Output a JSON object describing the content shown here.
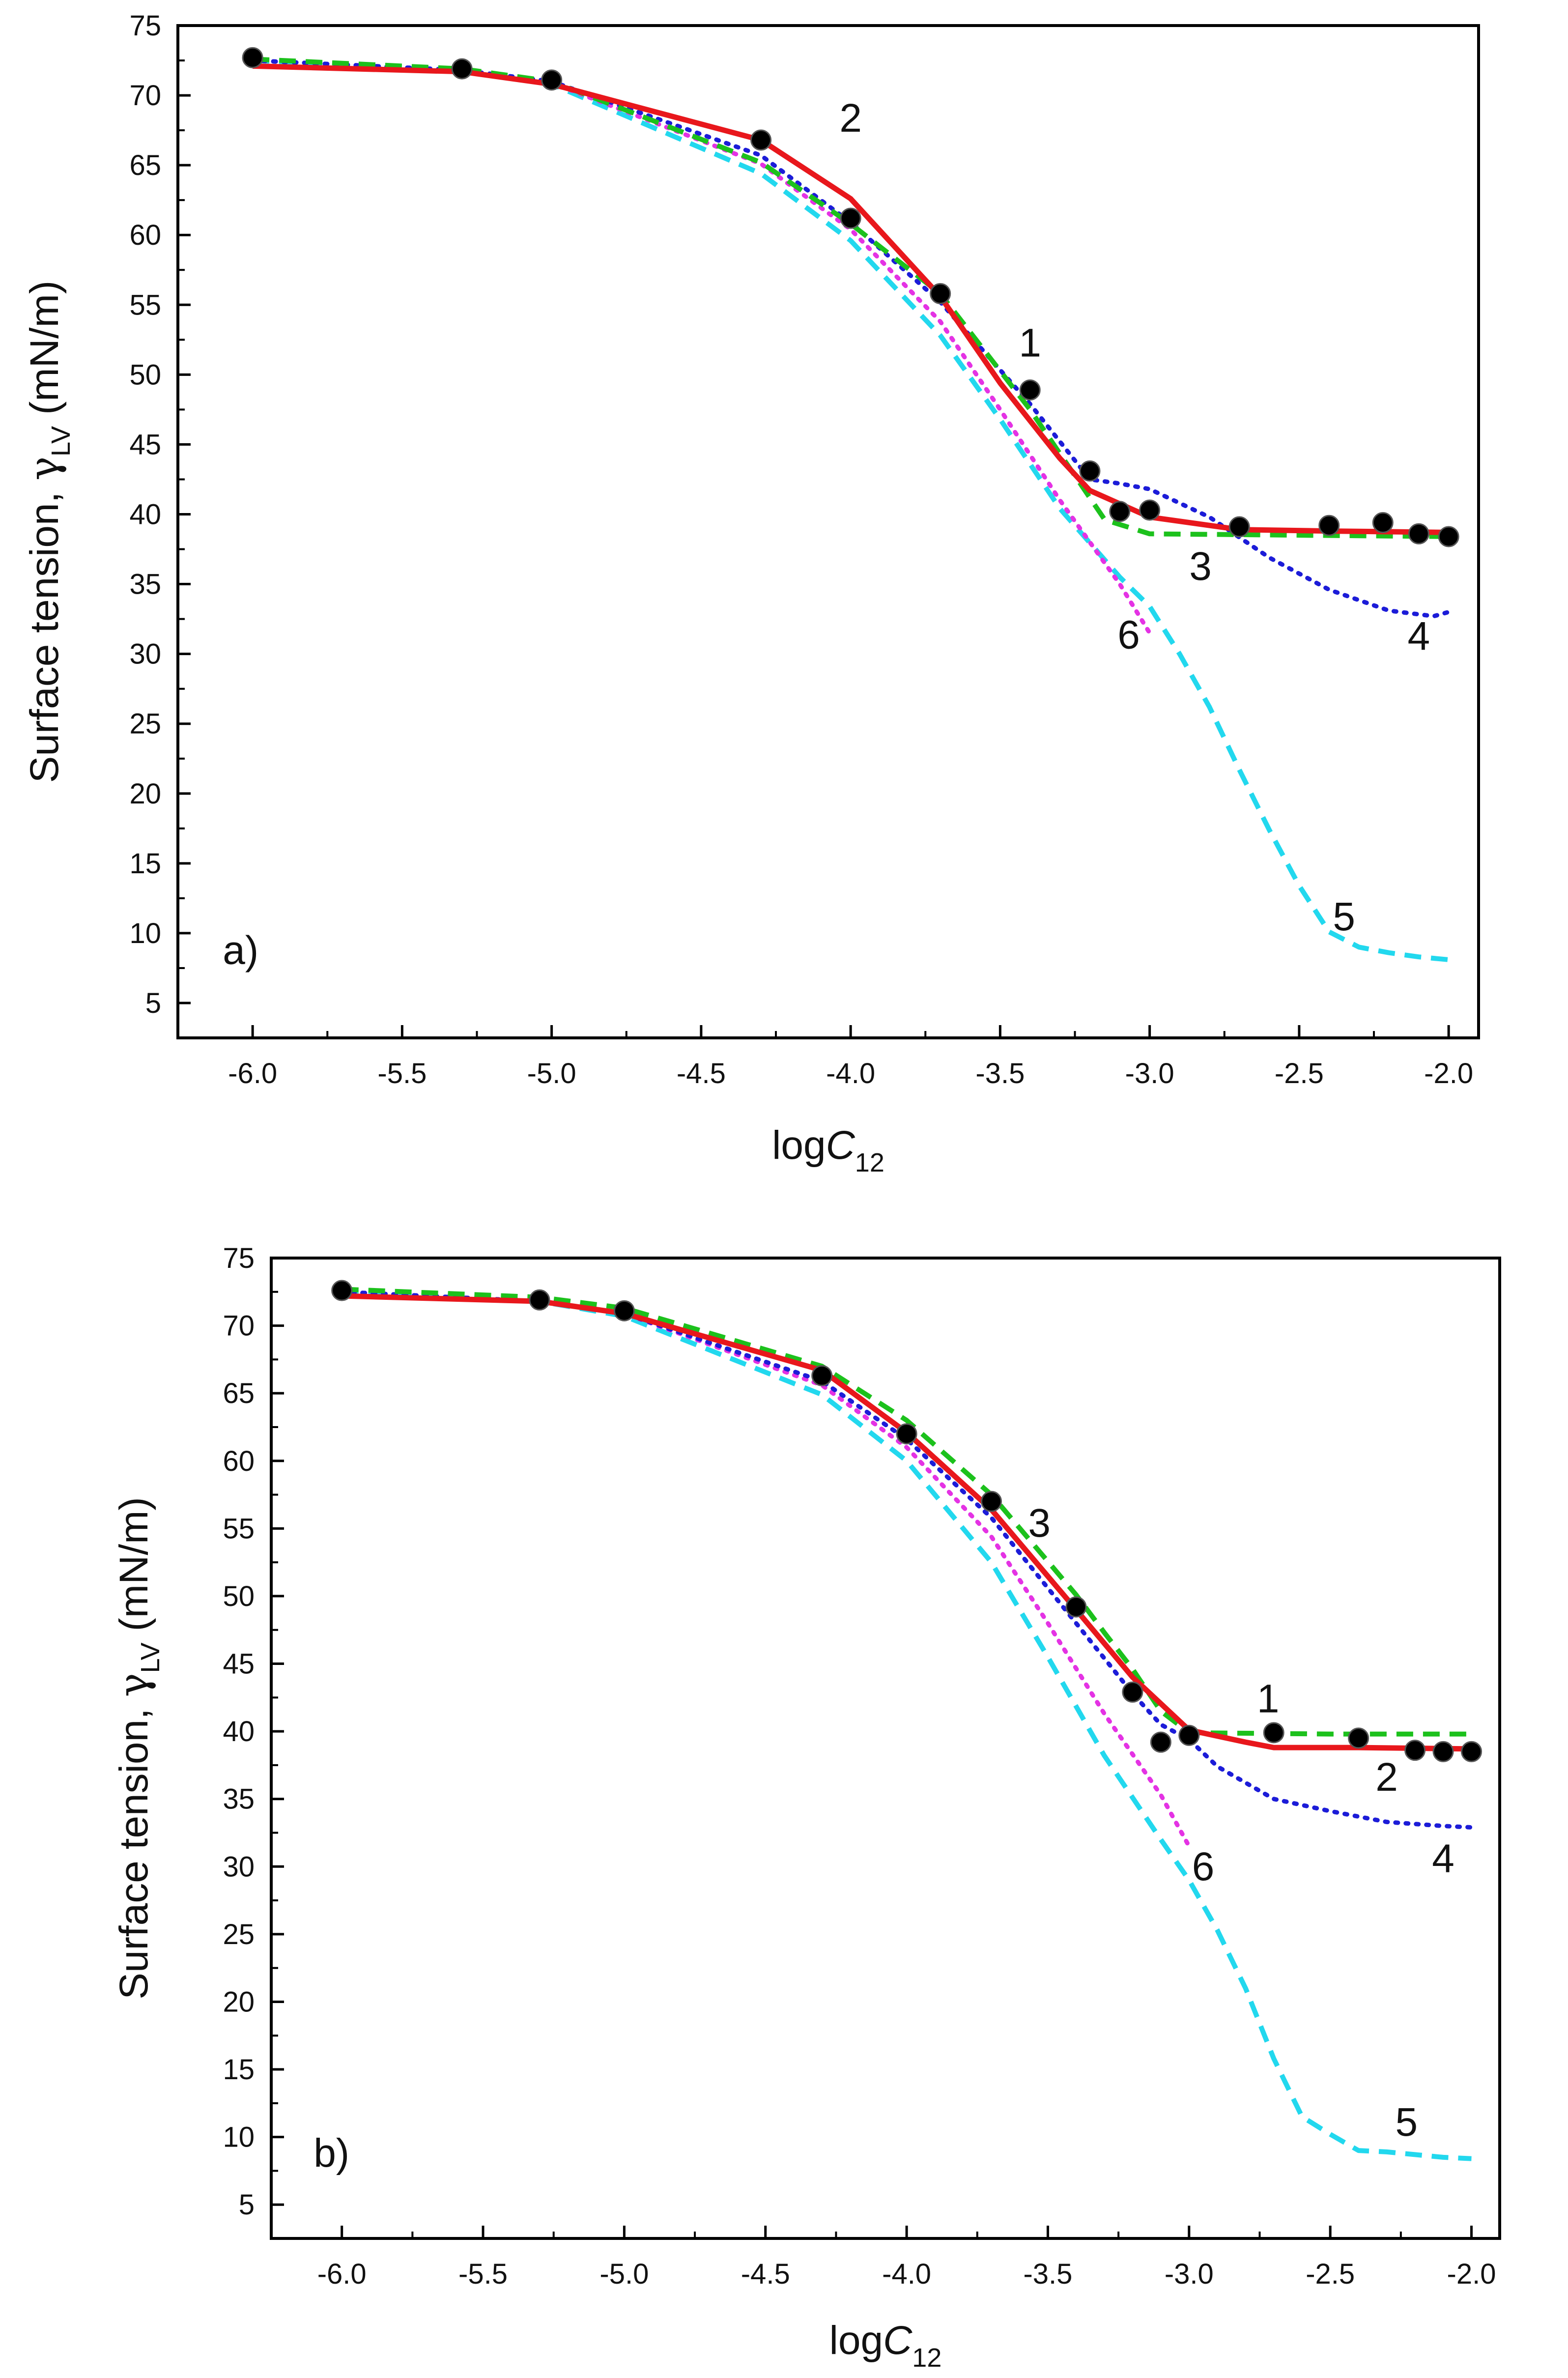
{
  "chart_data": [
    {
      "panel": "a)",
      "type": "line",
      "xlabel_main": "log",
      "xlabel_var": "C",
      "xlabel_sub": "12",
      "ylabel_main": "Surface tension, ",
      "ylabel_sym": "γ",
      "ylabel_sub": "LV",
      "ylabel_unit": " (mN/m)",
      "xlim": [
        -6.25,
        -1.9
      ],
      "ylim": [
        2.5,
        75
      ],
      "xticks": [
        -6.0,
        -5.5,
        -5.0,
        -4.5,
        -4.0,
        -3.5,
        -3.0,
        -2.5,
        -2.0
      ],
      "xtick_labels": [
        "-6.0",
        "-5.5",
        "-5.0",
        "-4.5",
        "-4.0",
        "-3.5",
        "-3.0",
        "-2.5",
        "-2.0"
      ],
      "yticks": [
        5,
        10,
        15,
        20,
        25,
        30,
        35,
        40,
        45,
        50,
        55,
        60,
        65,
        70,
        75
      ],
      "ytick_labels": [
        "5",
        "10",
        "15",
        "20",
        "25",
        "30",
        "35",
        "40",
        "45",
        "50",
        "55",
        "60",
        "65",
        "70",
        "75"
      ],
      "series": [
        {
          "name": "1",
          "kind": "points",
          "color": "#000000",
          "x": [
            -6.0,
            -5.3,
            -5.0,
            -4.3,
            -4.0,
            -3.7,
            -3.4,
            -3.2,
            -3.1,
            -3.0,
            -2.7,
            -2.4,
            -2.22,
            -2.1,
            -2.0
          ],
          "y": [
            72.7,
            71.9,
            71.1,
            66.8,
            61.2,
            55.8,
            48.9,
            43.1,
            40.2,
            40.3,
            39.1,
            39.2,
            39.4,
            38.6,
            38.4
          ]
        },
        {
          "name": "2",
          "kind": "line",
          "style": "solid",
          "color": "#e8171c",
          "x": [
            -6.0,
            -5.3,
            -5.0,
            -4.3,
            -4.0,
            -3.7,
            -3.5,
            -3.3,
            -3.2,
            -3.0,
            -2.7,
            -2.4,
            -2.0
          ],
          "y": [
            72.1,
            71.7,
            70.8,
            66.8,
            62.6,
            55.6,
            49.4,
            44.0,
            41.7,
            39.8,
            38.9,
            38.8,
            38.7
          ]
        },
        {
          "name": "3",
          "kind": "line",
          "style": "dash",
          "color": "#1cc11c",
          "x": [
            -6.0,
            -5.3,
            -5.0,
            -4.3,
            -4.0,
            -3.7,
            -3.4,
            -3.15,
            -3.0,
            -2.5,
            -2.0
          ],
          "y": [
            72.6,
            71.9,
            71.0,
            65.2,
            60.8,
            55.8,
            47.5,
            39.6,
            38.6,
            38.5,
            38.4
          ]
        },
        {
          "name": "4",
          "kind": "line",
          "style": "dot",
          "color": "#1c1cd8",
          "x": [
            -6.0,
            -5.3,
            -5.0,
            -4.3,
            -4.0,
            -3.7,
            -3.4,
            -3.2,
            -3.1,
            -3.0,
            -2.8,
            -2.6,
            -2.4,
            -2.2,
            -2.05,
            -2.0
          ],
          "y": [
            72.5,
            71.8,
            71.0,
            65.7,
            60.9,
            55.2,
            47.9,
            42.5,
            42.2,
            41.8,
            39.8,
            36.9,
            34.6,
            33.1,
            32.7,
            33.0
          ]
        },
        {
          "name": "5",
          "kind": "line",
          "style": "dash",
          "color": "#22d8ee",
          "x": [
            -6.0,
            -5.3,
            -5.0,
            -4.3,
            -4.0,
            -3.7,
            -3.5,
            -3.3,
            -3.1,
            -3.0,
            -2.9,
            -2.8,
            -2.7,
            -2.6,
            -2.5,
            -2.4,
            -2.3,
            -2.2,
            -2.1,
            -2.0
          ],
          "y": [
            72.5,
            71.8,
            70.8,
            64.4,
            59.6,
            52.8,
            46.8,
            40.4,
            35.5,
            33.4,
            30.0,
            26.2,
            21.7,
            17.4,
            13.4,
            10.1,
            9.0,
            8.6,
            8.3,
            8.1
          ]
        },
        {
          "name": "6",
          "kind": "line",
          "style": "dot",
          "color": "#e432e4",
          "x": [
            -6.0,
            -5.3,
            -5.0,
            -4.3,
            -4.0,
            -3.7,
            -3.5,
            -3.3,
            -3.1,
            -3.0
          ],
          "y": [
            72.5,
            71.8,
            70.9,
            65.1,
            60.4,
            53.8,
            47.5,
            41.0,
            35.0,
            31.5
          ]
        }
      ],
      "labels": [
        {
          "text": "1",
          "x": -3.4,
          "y": 51.3
        },
        {
          "text": "2",
          "x": -4.0,
          "y": 67.4
        },
        {
          "text": "3",
          "x": -2.83,
          "y": 35.3
        },
        {
          "text": "4",
          "x": -2.1,
          "y": 30.3
        },
        {
          "text": "5",
          "x": -2.35,
          "y": 10.2
        },
        {
          "text": "6",
          "x": -3.07,
          "y": 30.4
        }
      ]
    },
    {
      "panel": "b)",
      "type": "line",
      "xlabel_main": "log",
      "xlabel_var": "C",
      "xlabel_sub": "12",
      "ylabel_main": "Surface tension, ",
      "ylabel_sym": "γ",
      "ylabel_sub": "LV",
      "ylabel_unit": " (mN/m)",
      "xlim": [
        -6.25,
        -1.9
      ],
      "ylim": [
        2.5,
        75
      ],
      "xticks": [
        -6.0,
        -5.5,
        -5.0,
        -4.5,
        -4.0,
        -3.5,
        -3.0,
        -2.5,
        -2.0
      ],
      "xtick_labels": [
        "-6.0",
        "-5.5",
        "-5.0",
        "-4.5",
        "-4.0",
        "-3.5",
        "-3.0",
        "-2.5",
        "-2.0"
      ],
      "yticks": [
        5,
        10,
        15,
        20,
        25,
        30,
        35,
        40,
        45,
        50,
        55,
        60,
        65,
        70,
        75
      ],
      "ytick_labels": [
        "5",
        "10",
        "15",
        "20",
        "25",
        "30",
        "35",
        "40",
        "45",
        "50",
        "55",
        "60",
        "65",
        "70",
        "75"
      ],
      "series": [
        {
          "name": "1",
          "kind": "points",
          "color": "#000000",
          "x": [
            -6.0,
            -5.3,
            -5.0,
            -4.3,
            -4.0,
            -3.7,
            -3.4,
            -3.2,
            -3.1,
            -3.0,
            -2.7,
            -2.4,
            -2.2,
            -2.1,
            -2.0
          ],
          "y": [
            72.6,
            71.9,
            71.1,
            66.3,
            62.0,
            57.0,
            49.2,
            42.9,
            39.2,
            39.7,
            39.9,
            39.5,
            38.6,
            38.5,
            38.5
          ]
        },
        {
          "name": "2",
          "kind": "line",
          "style": "solid",
          "color": "#e8171c",
          "x": [
            -6.0,
            -5.3,
            -5.0,
            -4.3,
            -4.0,
            -3.7,
            -3.4,
            -3.2,
            -3.0,
            -2.8,
            -2.7,
            -2.4,
            -2.0
          ],
          "y": [
            72.2,
            71.8,
            70.9,
            66.7,
            62.1,
            56.4,
            49.0,
            44.0,
            40.1,
            39.2,
            38.8,
            38.8,
            38.7
          ]
        },
        {
          "name": "3",
          "kind": "line",
          "style": "dash",
          "color": "#1cc11c",
          "x": [
            -6.0,
            -5.3,
            -5.0,
            -4.3,
            -4.0,
            -3.7,
            -3.4,
            -3.3,
            -3.2,
            -3.1,
            -3.0,
            -2.5,
            -2.0
          ],
          "y": [
            72.7,
            72.1,
            71.3,
            67.0,
            63.0,
            57.5,
            50.1,
            47.3,
            44.6,
            41.5,
            39.9,
            39.8,
            39.8
          ]
        },
        {
          "name": "4",
          "kind": "line",
          "style": "dot",
          "color": "#1c1cd8",
          "x": [
            -6.0,
            -5.3,
            -5.0,
            -4.3,
            -4.0,
            -3.7,
            -3.4,
            -3.2,
            -3.1,
            -3.0,
            -2.9,
            -2.7,
            -2.5,
            -2.3,
            -2.1,
            -2.0
          ],
          "y": [
            72.5,
            71.8,
            70.9,
            65.9,
            61.6,
            55.8,
            48.0,
            42.8,
            40.5,
            39.4,
            37.4,
            35.0,
            34.1,
            33.3,
            33.0,
            32.9
          ]
        },
        {
          "name": "5",
          "kind": "line",
          "style": "dash",
          "color": "#22d8ee",
          "x": [
            -6.0,
            -5.3,
            -5.0,
            -4.3,
            -4.0,
            -3.7,
            -3.5,
            -3.3,
            -3.1,
            -3.0,
            -2.9,
            -2.8,
            -2.7,
            -2.6,
            -2.5,
            -2.4,
            -2.3,
            -2.2,
            -2.1,
            -2.0
          ],
          "y": [
            72.5,
            71.8,
            70.7,
            64.9,
            60.0,
            52.5,
            45.5,
            38.2,
            32.0,
            29.0,
            25.3,
            21.0,
            15.8,
            11.5,
            10.2,
            9.0,
            8.9,
            8.7,
            8.5,
            8.4
          ]
        },
        {
          "name": "6",
          "kind": "line",
          "style": "dot",
          "color": "#e432e4",
          "x": [
            -6.0,
            -5.3,
            -5.0,
            -4.3,
            -4.0,
            -3.7,
            -3.5,
            -3.3,
            -3.1,
            -3.0
          ],
          "y": [
            72.5,
            71.8,
            70.9,
            65.6,
            61.0,
            54.4,
            48.0,
            41.3,
            35.3,
            31.5
          ]
        }
      ],
      "labels": [
        {
          "text": "1",
          "x": -2.72,
          "y": 41.4
        },
        {
          "text": "2",
          "x": -2.3,
          "y": 35.6
        },
        {
          "text": "3",
          "x": -3.53,
          "y": 54.4
        },
        {
          "text": "4",
          "x": -2.1,
          "y": 29.6
        },
        {
          "text": "5",
          "x": -2.23,
          "y": 10.1
        },
        {
          "text": "6",
          "x": -2.95,
          "y": 29.0
        }
      ]
    }
  ]
}
